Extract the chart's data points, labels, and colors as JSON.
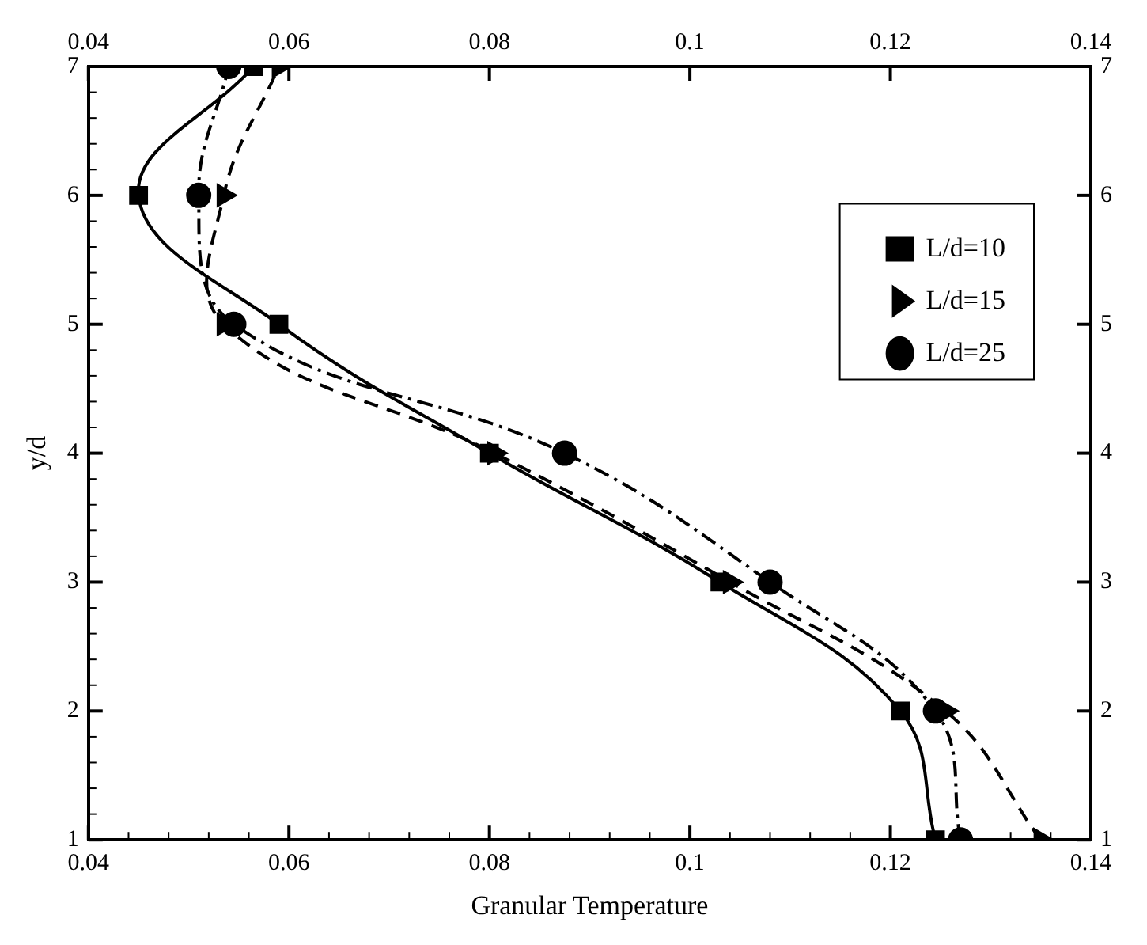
{
  "chart_data": {
    "type": "line",
    "xlabel": "Granular Temperature",
    "ylabel": "y/d",
    "legend": "right",
    "xlim": [
      0.04,
      0.14
    ],
    "xticks": [
      0.04,
      {
        "value": 0.044,
        "label": null
      },
      {
        "value": 0.048,
        "label": null
      },
      {
        "value": 0.052,
        "label": null
      },
      {
        "value": 0.056,
        "label": null
      },
      0.06,
      {
        "value": 0.064,
        "label": null
      },
      {
        "value": 0.068,
        "label": null
      },
      {
        "value": 0.072,
        "label": null
      },
      {
        "value": 0.076,
        "label": null
      },
      0.08,
      {
        "value": 0.084,
        "label": null
      },
      {
        "value": 0.088,
        "label": null
      },
      {
        "value": 0.092,
        "label": null
      },
      {
        "value": 0.096,
        "label": null
      },
      0.1,
      {
        "value": 0.104,
        "label": null
      },
      {
        "value": 0.108,
        "label": null
      },
      {
        "value": 0.112,
        "label": null
      },
      {
        "value": 0.116,
        "label": null
      },
      0.12,
      {
        "value": 0.124,
        "label": null
      },
      {
        "value": 0.128,
        "label": null
      },
      {
        "value": 0.132,
        "label": null
      },
      {
        "value": 0.136,
        "label": null
      },
      0.14
    ],
    "x2lim": [
      0.04,
      0.14
    ],
    "x2ticks": [
      0.04,
      0.06,
      0.08,
      0.1,
      0.12,
      0.14
    ],
    "ylim": [
      1,
      7
    ],
    "yticks": [
      1,
      {
        "value": 1.2,
        "label": null
      },
      {
        "value": 1.4,
        "label": null
      },
      {
        "value": 1.6,
        "label": null
      },
      {
        "value": 1.8,
        "label": null
      },
      2,
      {
        "value": 2.2,
        "label": null
      },
      {
        "value": 2.4,
        "label": null
      },
      {
        "value": 2.6,
        "label": null
      },
      {
        "value": 2.8,
        "label": null
      },
      3,
      {
        "value": 3.2,
        "label": null
      },
      {
        "value": 3.4,
        "label": null
      },
      {
        "value": 3.6,
        "label": null
      },
      {
        "value": 3.8,
        "label": null
      },
      4,
      {
        "value": 4.2,
        "label": null
      },
      {
        "value": 4.4,
        "label": null
      },
      {
        "value": 4.6,
        "label": null
      },
      {
        "value": 4.8,
        "label": null
      },
      5,
      {
        "value": 5.2,
        "label": null
      },
      {
        "value": 5.4,
        "label": null
      },
      {
        "value": 5.6,
        "label": null
      },
      {
        "value": 5.8,
        "label": null
      },
      6,
      {
        "value": 6.2,
        "label": null
      },
      {
        "value": 6.4,
        "label": null
      },
      {
        "value": 6.6,
        "label": null
      },
      {
        "value": 6.8,
        "label": null
      },
      7
    ],
    "y2lim": [
      1,
      7
    ],
    "y2ticks": [
      1,
      2,
      3,
      4,
      5,
      6,
      7
    ],
    "series": [
      {
        "name": "L/d=10",
        "color": "#000000",
        "marker": "square",
        "line_style": "solid",
        "x": [
          0.1245,
          0.121,
          0.103,
          0.08,
          0.059,
          0.045,
          0.0565
        ],
        "values": [
          1,
          2,
          3,
          4,
          5,
          6,
          7
        ]
      },
      {
        "name": "L/d=15",
        "color": "#000000",
        "marker": "triangle",
        "line_style": "dashed",
        "x": [
          0.135,
          0.1255,
          0.104,
          0.0805,
          0.0535,
          0.0535,
          0.059
        ],
        "values": [
          1,
          2,
          3,
          4,
          5,
          6,
          7
        ]
      },
      {
        "name": "L/d=25",
        "color": "#000000",
        "marker": "circle",
        "line_style": "dashdot",
        "x": [
          0.127,
          0.1245,
          0.108,
          0.0875,
          0.0545,
          0.051,
          0.054
        ],
        "values": [
          1,
          2,
          3,
          4,
          5,
          6,
          7
        ]
      }
    ]
  }
}
